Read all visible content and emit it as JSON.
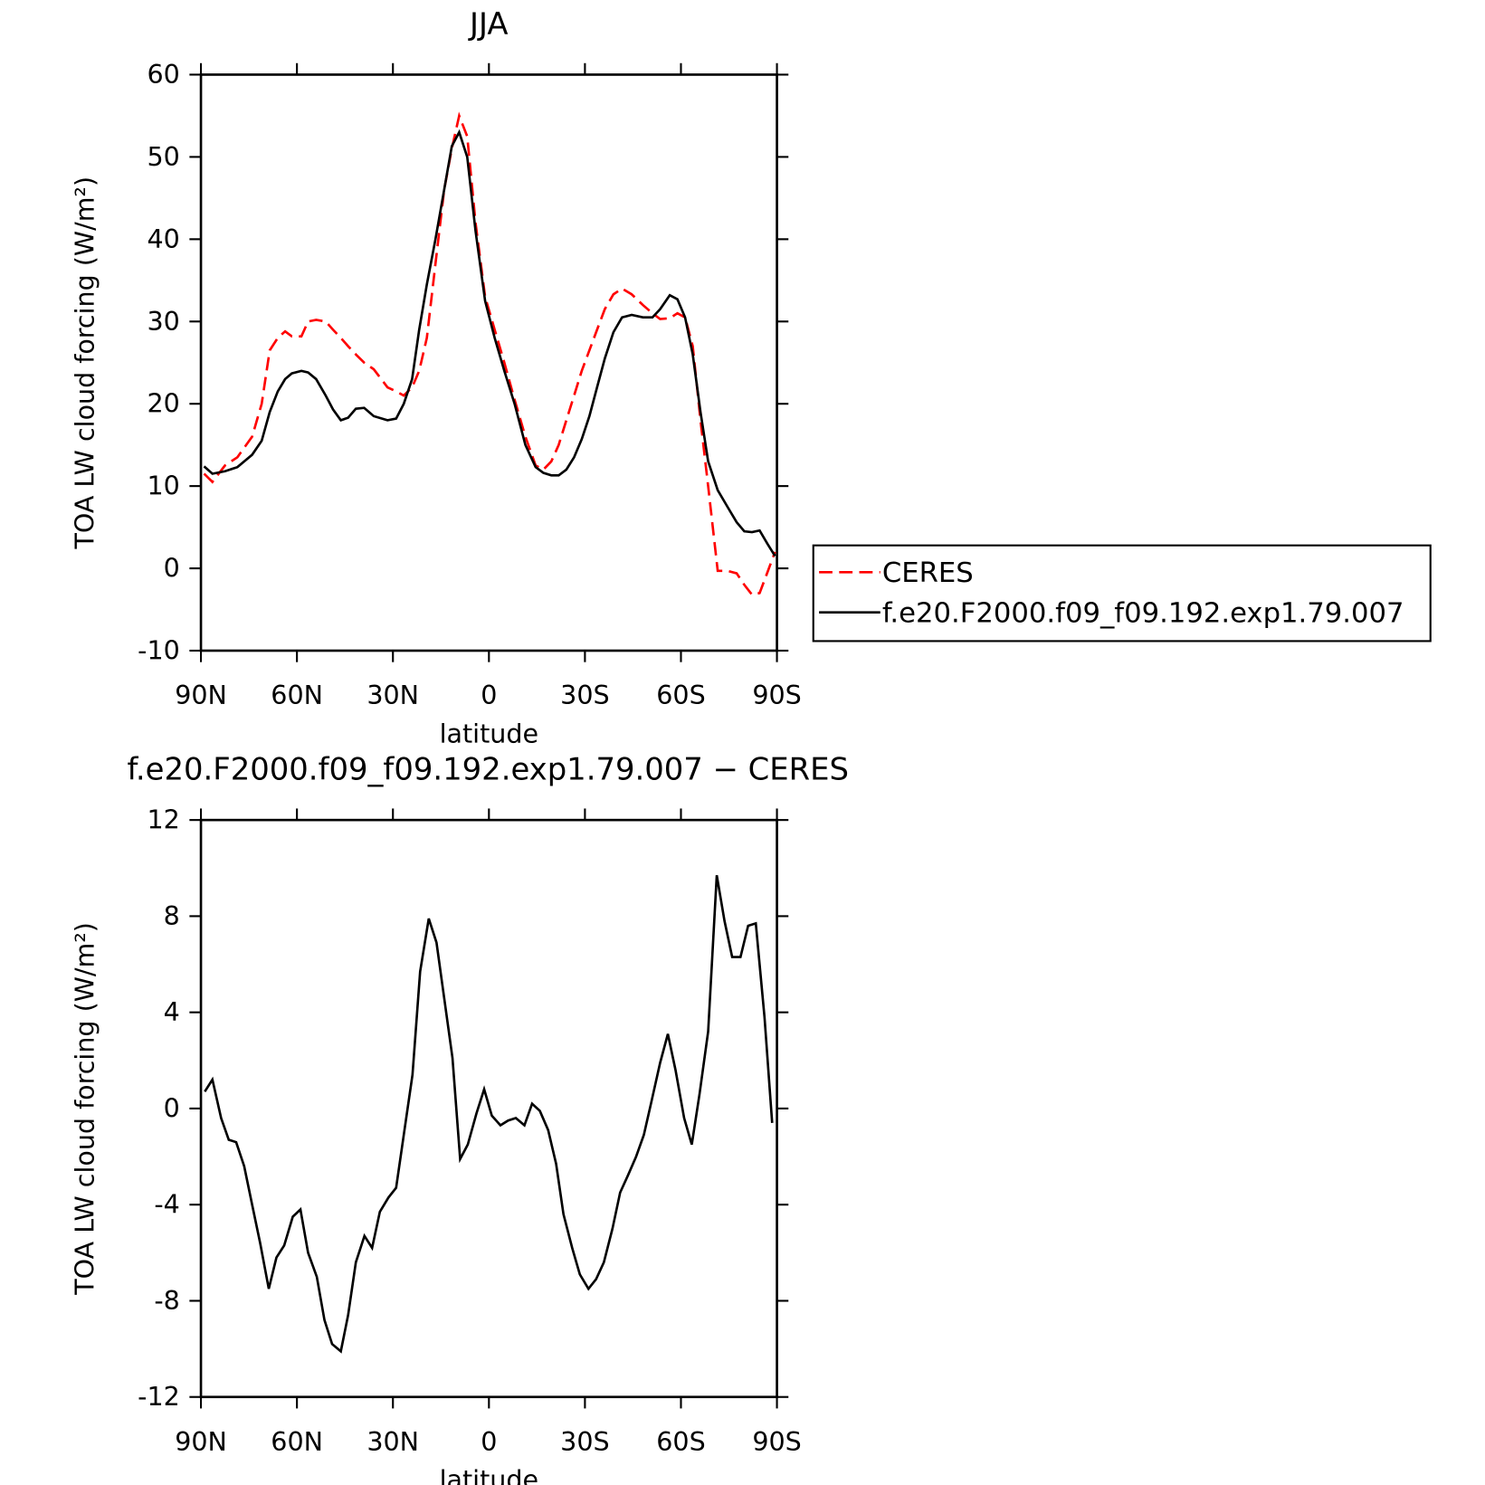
{
  "chart_data": [
    {
      "type": "line",
      "title": "JJA",
      "xlabel": "latitude",
      "ylabel": "TOA LW cloud forcing (W/m²)",
      "xlim": [
        90,
        -90
      ],
      "xticks": [
        {
          "value": 90,
          "label": "90N"
        },
        {
          "value": 60,
          "label": "60N"
        },
        {
          "value": 30,
          "label": "30N"
        },
        0,
        {
          "value": -30,
          "label": "30S"
        },
        {
          "value": -60,
          "label": "60S"
        },
        {
          "value": -90,
          "label": "90S"
        }
      ],
      "ylim": [
        -10,
        60
      ],
      "yticks": [
        -10,
        0,
        10,
        20,
        30,
        40,
        50,
        60
      ],
      "legend": "outside right",
      "x": [
        89,
        86.4,
        82.5,
        78.6,
        74,
        71,
        68.5,
        66,
        63.7,
        61.6,
        58.6,
        56.5,
        54,
        51,
        48.7,
        46.3,
        44,
        41.6,
        39,
        36,
        31.7,
        29,
        26.6,
        24,
        21.8,
        19.4,
        16.7,
        14,
        11.6,
        9.3,
        6.8,
        4.2,
        1.2,
        -1.8,
        -4.8,
        -8,
        -11.4,
        -14.6,
        -17,
        -19.5,
        -21.8,
        -24.2,
        -26.6,
        -29,
        -31.4,
        -33.8,
        -36.2,
        -38.9,
        -41.6,
        -44.6,
        -48.1,
        -51.1,
        -53.5,
        -56.5,
        -58.9,
        -61.3,
        -63.7,
        -66.1,
        -68.5,
        -71.5,
        -74.5,
        -77.4,
        -79.8,
        -82.2,
        -84.6,
        -87,
        -89.4
      ],
      "series": [
        {
          "name": "CERES",
          "color": "#ff0000",
          "linestyle": "dashed",
          "values": [
            11.5,
            10.5,
            12.5,
            13.5,
            16,
            20,
            26.5,
            28,
            28.8,
            28.2,
            28.2,
            30,
            30.2,
            30,
            29,
            28,
            27,
            26,
            25,
            24.2,
            22,
            21.5,
            21,
            22,
            24,
            28,
            37,
            46,
            51,
            55,
            52.5,
            42,
            33,
            29,
            25,
            20.5,
            16,
            12.5,
            12,
            13,
            15,
            18,
            21,
            24,
            26.5,
            29,
            31.5,
            33.3,
            34,
            33.3,
            32,
            31,
            30.3,
            30.4,
            31,
            30.5,
            27,
            18,
            10,
            -0.3,
            -0.3,
            -0.6,
            -2,
            -3.2,
            -3,
            -0.5,
            2
          ]
        },
        {
          "name": "f.e20.F2000.f09_f09.192.exp1.79.007",
          "color": "#000000",
          "linestyle": "solid",
          "values": [
            12.4,
            11.5,
            11.8,
            12.3,
            13.8,
            15.5,
            19,
            21.5,
            23,
            23.7,
            24,
            23.8,
            23,
            21,
            19.3,
            18,
            18.3,
            19.4,
            19.5,
            18.5,
            18,
            18.2,
            20,
            23,
            29,
            34.5,
            40,
            46,
            51.3,
            53,
            50,
            41,
            32.5,
            28,
            24,
            20,
            15,
            12.3,
            11.6,
            11.3,
            11.3,
            12,
            13.5,
            15.7,
            18.5,
            22,
            25.5,
            28.7,
            30.5,
            30.8,
            30.5,
            30.5,
            31.5,
            33.2,
            32.7,
            30.5,
            26,
            19,
            13,
            9.5,
            7.5,
            5.6,
            4.5,
            4.4,
            4.6,
            3,
            1.5
          ]
        }
      ]
    },
    {
      "type": "line",
      "title": "f.e20.F2000.f09_f09.192.exp1.79.007 − CERES",
      "xlabel": "latitude",
      "ylabel": "TOA LW cloud forcing (W/m²)",
      "xlim": [
        90,
        -90
      ],
      "xticks": [
        {
          "value": 90,
          "label": "90N"
        },
        {
          "value": 60,
          "label": "60N"
        },
        {
          "value": 30,
          "label": "30N"
        },
        0,
        {
          "value": -30,
          "label": "30S"
        },
        {
          "value": -60,
          "label": "60S"
        },
        {
          "value": -90,
          "label": "90S"
        }
      ],
      "ylim": [
        -12,
        12
      ],
      "yticks": [
        -12,
        -8,
        -4,
        0,
        4,
        8,
        12
      ],
      "x": [
        88.8,
        86.4,
        83.7,
        81.3,
        79,
        76.5,
        74,
        71.5,
        68.8,
        66.4,
        64,
        61.3,
        58.9,
        56.5,
        53.8,
        51.4,
        49,
        46.3,
        44,
        41.6,
        38.9,
        36.5,
        34.1,
        31.4,
        29,
        26.6,
        23.9,
        21.5,
        18.8,
        16.4,
        14,
        11.4,
        9,
        6.6,
        3.9,
        1.5,
        -0.9,
        -3.6,
        -6,
        -8.4,
        -11.1,
        -13.5,
        -15.9,
        -18.5,
        -21,
        -23.3,
        -26,
        -28.4,
        -31.1,
        -33.5,
        -35.9,
        -38.6,
        -41,
        -43.4,
        -46,
        -48.4,
        -50.8,
        -53.5,
        -55.9,
        -58.3,
        -61,
        -63.4,
        -65.8,
        -68.5,
        -71.2,
        -73.6,
        -76,
        -78.6,
        -81,
        -83.4,
        -86.1,
        -88.5
      ],
      "series": [
        {
          "color": "#000000",
          "linestyle": "solid",
          "values": [
            0.7,
            1.2,
            -0.4,
            -1.3,
            -1.4,
            -2.4,
            -4,
            -5.6,
            -7.5,
            -6.2,
            -5.7,
            -4.5,
            -4.2,
            -6,
            -7,
            -8.8,
            -9.8,
            -10.1,
            -8.6,
            -6.4,
            -5.3,
            -5.8,
            -4.3,
            -3.7,
            -3.3,
            -1.1,
            1.4,
            5.7,
            7.9,
            6.9,
            4.6,
            2.1,
            -2.1,
            -1.5,
            -0.2,
            0.8,
            -0.3,
            -0.7,
            -0.5,
            -0.4,
            -0.7,
            0.2,
            -0.1,
            -0.9,
            -2.3,
            -4.4,
            -5.8,
            -6.9,
            -7.5,
            -7.1,
            -6.4,
            -5,
            -3.5,
            -2.8,
            -2,
            -1.1,
            0.3,
            1.9,
            3.1,
            1.6,
            -0.4,
            -1.5,
            0.6,
            3.2,
            9.7,
            7.8,
            6.3,
            6.3,
            7.6,
            7.7,
            3.8,
            -0.6
          ]
        }
      ]
    }
  ]
}
